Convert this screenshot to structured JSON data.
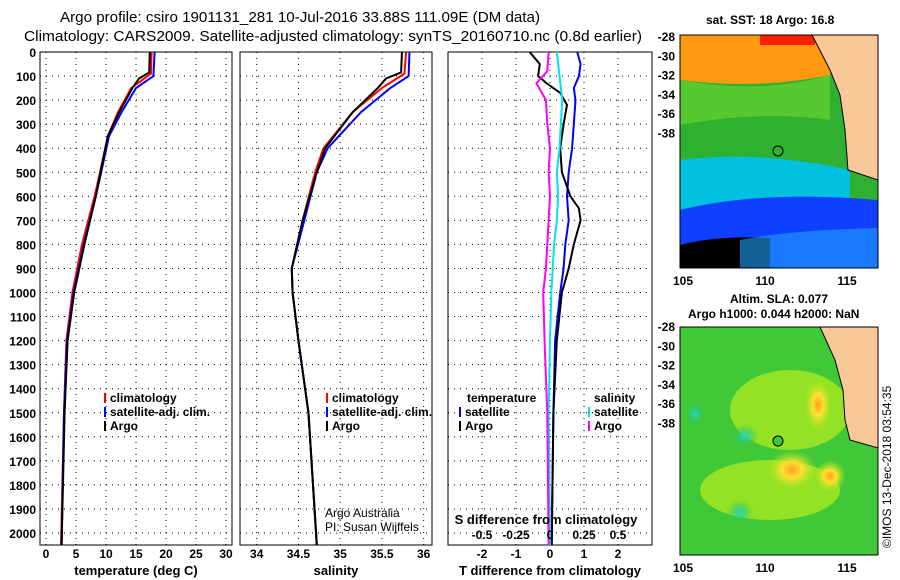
{
  "title_line1": "Argo profile: csiro 1901131_281 10-Jul-2016 33.88S 111.09E (DM data)",
  "title_line2": "Climatology: CARS2009. Satellite-adjusted climatology: synTS_20160710.nc (0.8d earlier)",
  "credit": "Argo Australia",
  "pi": "PI: Susan Wijffels",
  "stamp": "©IMOS 13-Dec-2018 03:54:35",
  "colors": {
    "climatology": "#ff0000",
    "satellite": "#0000ff",
    "argo": "#000000",
    "sal_satellite": "#00e5e5",
    "sal_argo": "#ff00ff"
  },
  "chart_data": [
    {
      "type": "line",
      "id": "temperature",
      "xlabel": "temperature (deg C)",
      "ylabel": "",
      "xlim": [
        -1,
        31
      ],
      "ylim": [
        2080,
        0
      ],
      "xticks": [
        "0",
        "5",
        "10",
        "15",
        "20",
        "25",
        "30"
      ],
      "xtick_vals": [
        0,
        5,
        10,
        15,
        20,
        25,
        30
      ],
      "yticks": [
        "0",
        "100",
        "200",
        "300",
        "400",
        "500",
        "600",
        "700",
        "800",
        "900",
        "1000",
        "1100",
        "1200",
        "1300",
        "1400",
        "1500",
        "1600",
        "1700",
        "1800",
        "1900",
        "2000"
      ],
      "legend": [
        "climatology",
        "satellite-adj. clim.",
        "Argo"
      ],
      "series": [
        {
          "name": "climatology",
          "color": "#ff0000",
          "depth": [
            0,
            90,
            150,
            250,
            350,
            500,
            600,
            800,
            1000,
            1200,
            1500,
            2050
          ],
          "values": [
            17.6,
            17.5,
            14.2,
            12,
            10.3,
            9,
            8.1,
            6,
            4.4,
            3.4,
            3,
            2.5
          ]
        },
        {
          "name": "satellite-adj. clim.",
          "color": "#0000ff",
          "depth": [
            0,
            100,
            150,
            250,
            350,
            500,
            600,
            800,
            1000,
            1200,
            1500,
            2050
          ],
          "values": [
            18.1,
            17.9,
            15,
            12.6,
            10.5,
            9.2,
            8.3,
            6.3,
            4.6,
            3.5,
            3,
            2.6
          ]
        },
        {
          "name": "Argo",
          "color": "#000000",
          "depth": [
            0,
            85,
            110,
            150,
            250,
            350,
            500,
            600,
            800,
            1000,
            1200,
            1500,
            2050
          ],
          "values": [
            17.3,
            17.2,
            15.5,
            14.4,
            12.2,
            10.3,
            9.1,
            8.3,
            6.4,
            4.7,
            3.6,
            3.1,
            2.6
          ]
        }
      ]
    },
    {
      "type": "line",
      "id": "salinity",
      "xlabel": "salinity",
      "xlim": [
        33.8,
        36.1
      ],
      "ylim": [
        2080,
        0
      ],
      "xticks": [
        "34",
        "34.5",
        "35",
        "35.5",
        "36"
      ],
      "xtick_vals": [
        34,
        34.5,
        35,
        35.5,
        36
      ],
      "legend": [
        "climatology",
        "satellite-adj. clim.",
        "Argo"
      ],
      "series": [
        {
          "name": "climatology",
          "color": "#ff0000",
          "depth": [
            0,
            90,
            150,
            250,
            400,
            500,
            700,
            900,
            1000,
            1200,
            1500,
            2050
          ],
          "values": [
            35.79,
            35.77,
            35.5,
            35.15,
            34.8,
            34.7,
            34.55,
            34.42,
            34.43,
            34.5,
            34.62,
            34.72
          ]
        },
        {
          "name": "satellite-adj. clim.",
          "color": "#0000ff",
          "depth": [
            0,
            100,
            150,
            250,
            400,
            500,
            700,
            900,
            1000,
            1200,
            1500,
            2050
          ],
          "values": [
            35.83,
            35.82,
            35.6,
            35.25,
            34.85,
            34.72,
            34.57,
            34.42,
            34.43,
            34.5,
            34.62,
            34.72
          ]
        },
        {
          "name": "Argo",
          "color": "#000000",
          "depth": [
            0,
            85,
            110,
            150,
            250,
            400,
            500,
            700,
            900,
            1000,
            1200,
            1500,
            2050
          ],
          "values": [
            35.74,
            35.73,
            35.55,
            35.45,
            35.15,
            34.82,
            34.72,
            34.55,
            34.42,
            34.43,
            34.5,
            34.62,
            34.72
          ]
        }
      ]
    },
    {
      "type": "line",
      "id": "difference",
      "xlabel": "T difference from climatology",
      "x2label": "S difference from climatology",
      "xlim": [
        -3,
        3
      ],
      "x2lim": [
        -0.75,
        0.75
      ],
      "ylim": [
        2080,
        0
      ],
      "xticks": [
        "-2",
        "-1",
        "0",
        "1",
        "2"
      ],
      "xtick_vals": [
        -2,
        -1,
        0,
        1,
        2
      ],
      "x2ticks": [
        "-0.5",
        "-0.25",
        "0",
        "0.25",
        "0.5"
      ],
      "x2tick_vals": [
        -0.5,
        -0.25,
        0,
        0.25,
        0.5
      ],
      "legend_temperature": {
        "title": "temperature",
        "items": [
          "satellite",
          "Argo"
        ]
      },
      "legend_salinity": {
        "title": "salinity",
        "items": [
          "satellite",
          "Argo"
        ]
      },
      "series": [
        {
          "name": "temperature satellite",
          "color": "#0000ff",
          "axis": "T",
          "depth": [
            0,
            50,
            100,
            150,
            200,
            300,
            400,
            500,
            600,
            700,
            800,
            900,
            1000,
            1200,
            1500,
            2050
          ],
          "values": [
            0.8,
            0.9,
            0.85,
            0.7,
            0.75,
            0.7,
            0.65,
            0.55,
            0.5,
            0.55,
            0.45,
            0.4,
            0.3,
            0.15,
            0.1,
            0.05
          ]
        },
        {
          "name": "temperature Argo",
          "color": "#000000",
          "axis": "T",
          "depth": [
            0,
            50,
            100,
            130,
            170,
            220,
            300,
            400,
            500,
            600,
            650,
            700,
            800,
            900,
            1000,
            1200,
            1500,
            2050
          ],
          "values": [
            -0.6,
            -0.3,
            -0.35,
            -0.1,
            0.3,
            0.5,
            0.4,
            0.3,
            0.35,
            0.6,
            0.85,
            0.9,
            0.7,
            0.55,
            0.35,
            0.2,
            0.1,
            0.05
          ]
        },
        {
          "name": "salinity satellite",
          "color": "#00e5e5",
          "axis": "S",
          "depth": [
            0,
            100,
            200,
            300,
            400,
            500,
            600,
            700,
            800,
            900,
            1000,
            1200,
            1500,
            2050
          ],
          "values": [
            0.05,
            0.07,
            0.09,
            0.08,
            0.07,
            0.05,
            0.06,
            0.05,
            0.03,
            0.02,
            0.01,
            0.0,
            -0.01,
            0.0
          ]
        },
        {
          "name": "salinity Argo",
          "color": "#ff00ff",
          "axis": "S",
          "depth": [
            0,
            80,
            130,
            200,
            300,
            400,
            500,
            600,
            700,
            800,
            900,
            1000,
            1200,
            1500,
            2050
          ],
          "values": [
            -0.01,
            -0.02,
            -0.1,
            -0.03,
            -0.02,
            0.0,
            -0.01,
            0.0,
            -0.01,
            -0.02,
            -0.03,
            -0.05,
            -0.04,
            -0.02,
            -0.01
          ]
        }
      ]
    },
    {
      "type": "heatmap",
      "id": "sst_map",
      "title": "sat. SST: 18 Argo: 16.8",
      "xticks": [
        "105",
        "110",
        "115"
      ],
      "yticks": [
        "-28",
        "-30",
        "-32",
        "-34",
        "-36",
        "-38"
      ],
      "float_lon": 111.09,
      "float_lat": -33.88
    },
    {
      "type": "heatmap",
      "id": "sla_map",
      "title1": "Altim. SLA: 0.077",
      "title2": "Argo h1000: 0.044 h2000: NaN",
      "xticks": [
        "105",
        "110",
        "115"
      ],
      "yticks": [
        "-28",
        "-30",
        "-32",
        "-34",
        "-36",
        "-38"
      ],
      "float_lon": 111.09,
      "float_lat": -33.88
    }
  ]
}
